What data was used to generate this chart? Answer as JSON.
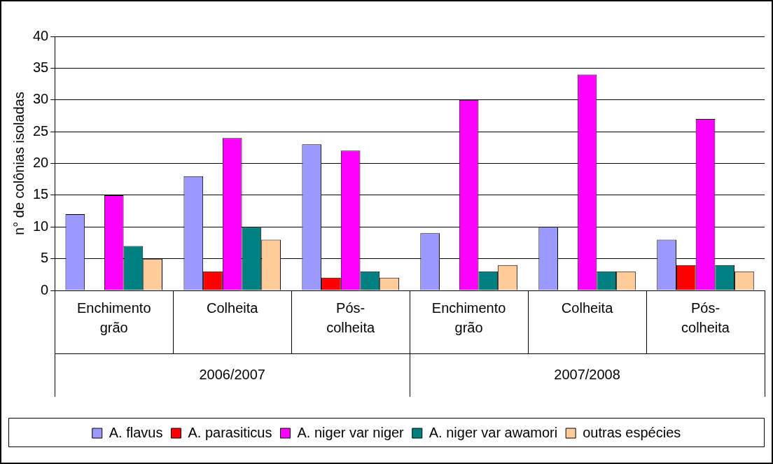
{
  "chart_data": {
    "type": "bar",
    "ylabel": "n° de colônias isoladas",
    "categories": [
      "Enchimento grão",
      "Colheita",
      "Pós-colheita",
      "Enchimento grão",
      "Colheita",
      "Pós-colheita"
    ],
    "series": [
      {
        "name": "A. flavus",
        "color": "#9999ff",
        "values": [
          12,
          18,
          23,
          9,
          10,
          8
        ]
      },
      {
        "name": "A. parasiticus",
        "color": "#ff0000",
        "values": [
          0,
          3,
          2,
          0,
          0,
          4
        ]
      },
      {
        "name": "A. niger var niger",
        "color": "#ff00ff",
        "values": [
          15,
          24,
          22,
          30,
          34,
          27
        ]
      },
      {
        "name": "A. niger var awamori",
        "color": "#008080",
        "values": [
          7,
          10,
          3,
          3,
          3,
          4
        ]
      },
      {
        "name": "outras espécies",
        "color": "#ffcc99",
        "values": [
          5,
          8,
          2,
          4,
          3,
          3
        ]
      }
    ],
    "annotations": [
      "2006/2007",
      "2007/2008"
    ],
    "ylim": [
      0,
      40
    ],
    "yticks": [
      0,
      5,
      10,
      15,
      20,
      25,
      30,
      35,
      40
    ],
    "grid": "y",
    "legend": "bottom"
  }
}
